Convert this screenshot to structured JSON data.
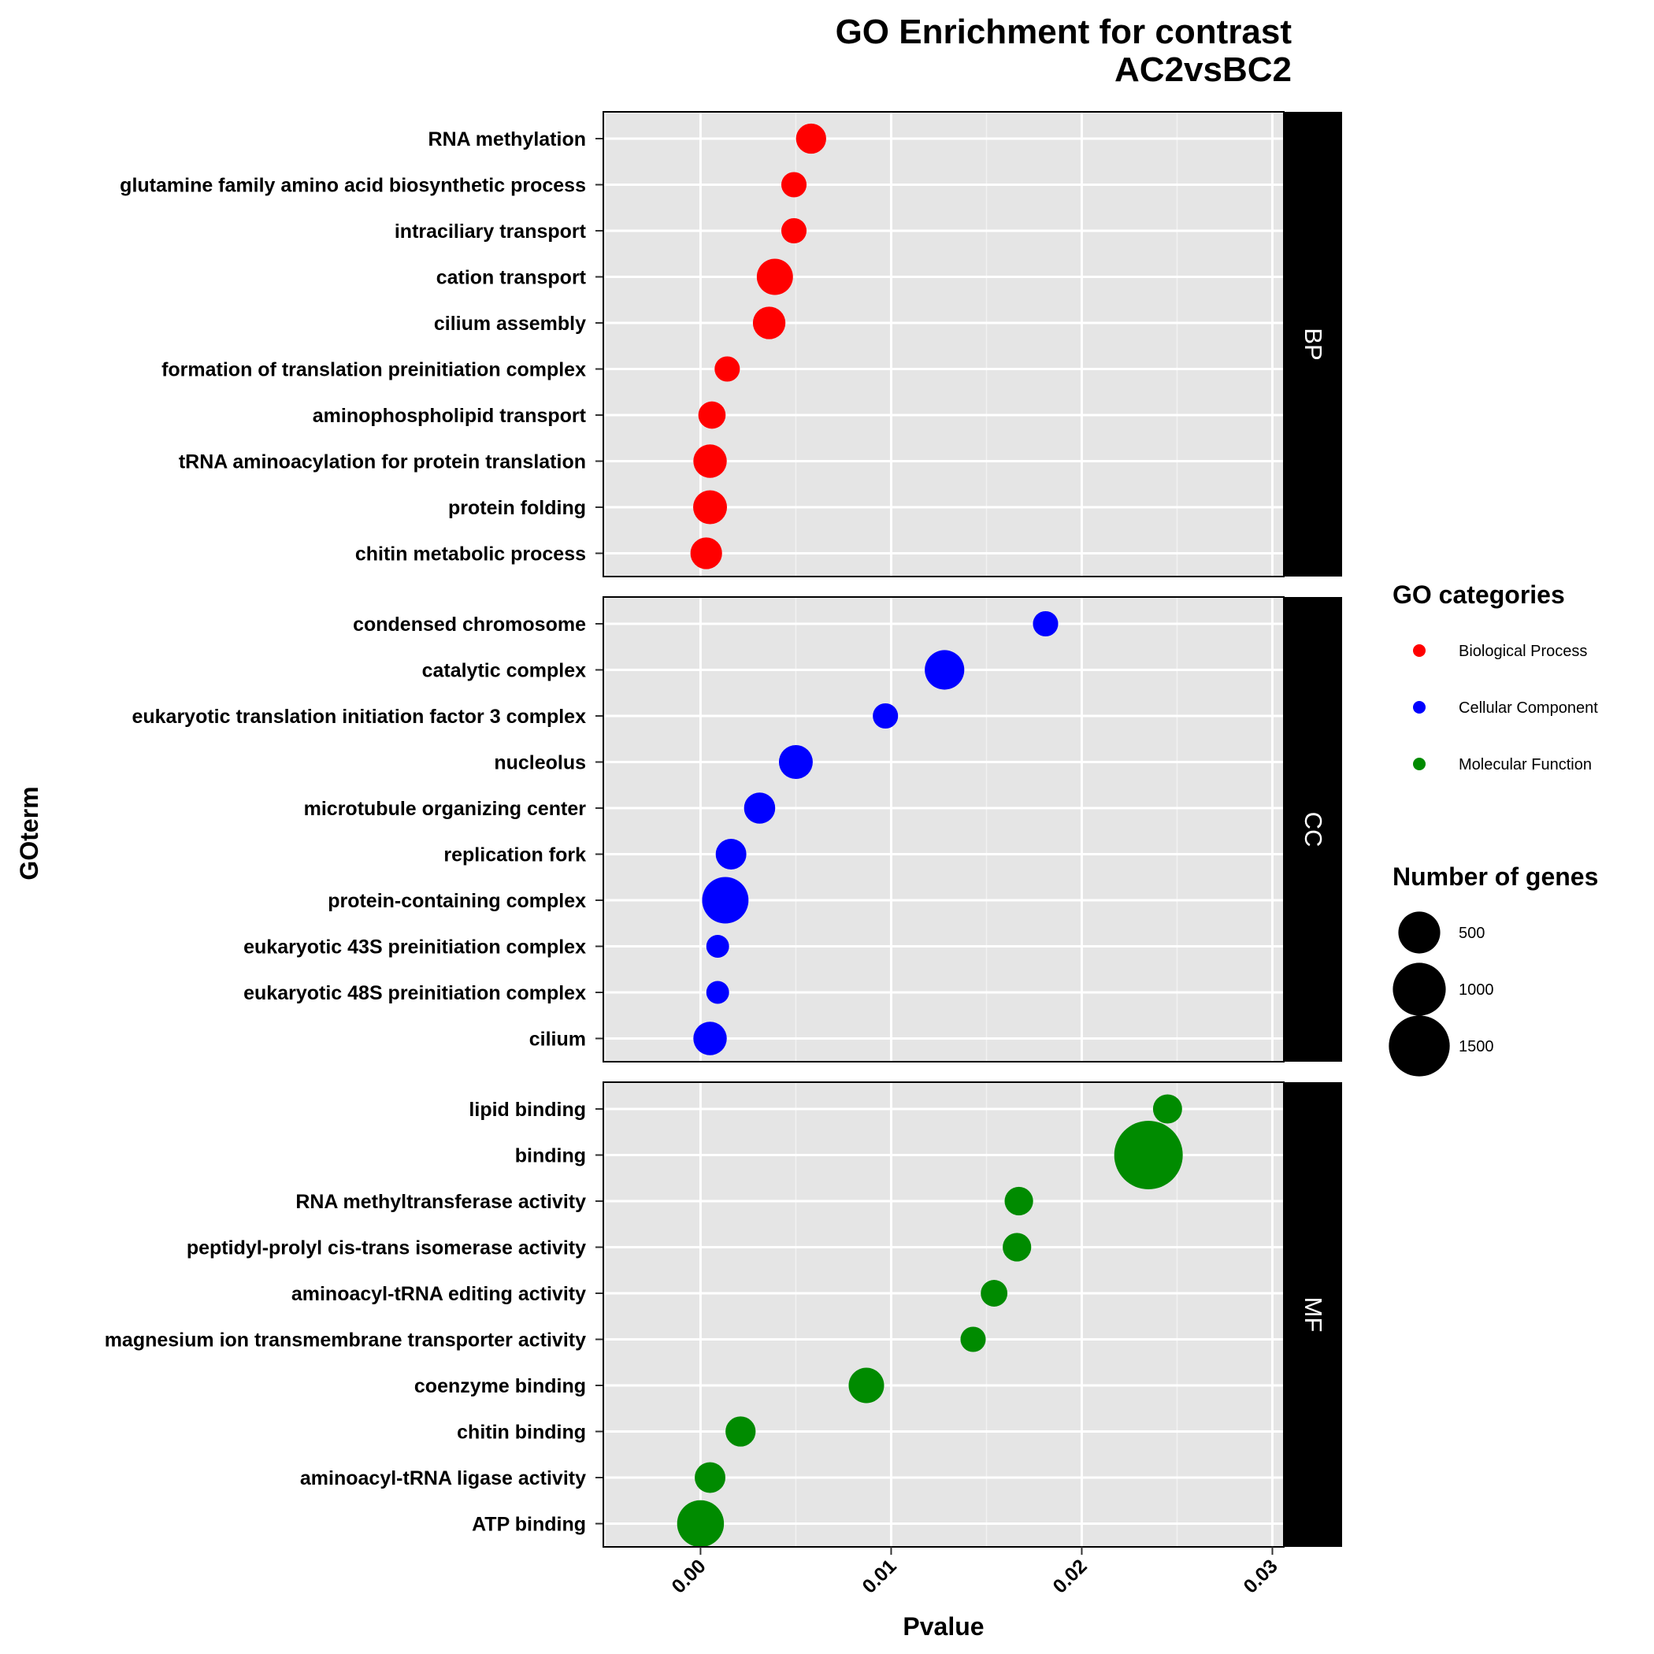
{
  "chart_data": {
    "type": "scatter",
    "title_line1": "GO Enrichment for contrast",
    "title_line2": "AC2vsBC2",
    "xlabel": "Pvalue",
    "ylabel": "GOterm",
    "xlim": [
      -0.0051,
      0.0306
    ],
    "xticks": [
      0.0,
      0.01,
      0.02,
      0.03
    ],
    "xtick_labels": [
      "0.00",
      "0.01",
      "0.02",
      "0.03"
    ],
    "grid": true,
    "legend_position": "right",
    "panels": [
      {
        "label": "BP",
        "category": "Biological Process",
        "color": "#ff0000",
        "terms": [
          "RNA methylation",
          "glutamine family amino acid biosynthetic process",
          "intraciliary transport",
          "cation transport",
          "cilium assembly",
          "formation of translation preinitiation complex",
          "aminophospholipid transport",
          "tRNA aminoacylation for protein translation",
          "protein folding",
          "chitin metabolic process"
        ],
        "pvalues": [
          0.0058,
          0.0049,
          0.0049,
          0.0039,
          0.0036,
          0.0014,
          0.0006,
          0.0005,
          0.0005,
          0.0003
        ],
        "genes": [
          180,
          100,
          100,
          320,
          230,
          100,
          130,
          250,
          260,
          210
        ]
      },
      {
        "label": "CC",
        "category": "Cellular Component",
        "color": "#0000ff",
        "terms": [
          "condensed chromosome",
          "catalytic complex",
          "eukaryotic translation initiation factor 3 complex",
          "nucleolus",
          "microtubule organizing center",
          "replication fork",
          "protein-containing complex",
          "eukaryotic 43S preinitiation complex",
          "eukaryotic 48S preinitiation complex",
          "cilium"
        ],
        "pvalues": [
          0.0181,
          0.0128,
          0.0097,
          0.005,
          0.0031,
          0.0016,
          0.0013,
          0.0009,
          0.0009,
          0.0005
        ],
        "genes": [
          100,
          420,
          100,
          260,
          200,
          190,
          680,
          70,
          70,
          250
        ]
      },
      {
        "label": "MF",
        "category": "Molecular Function",
        "color": "#008b00",
        "terms": [
          "lipid binding",
          "binding",
          "RNA methyltransferase activity",
          "peptidyl-prolyl cis-trans isomerase activity",
          "aminoacyl-tRNA editing activity",
          "magnesium ion transmembrane transporter activity",
          "coenzyme binding",
          "chitin binding",
          "aminoacyl-tRNA ligase activity",
          "ATP binding"
        ],
        "pvalues": [
          0.0245,
          0.0235,
          0.0167,
          0.0166,
          0.0154,
          0.0143,
          0.0087,
          0.0021,
          0.0005,
          0.0
        ],
        "genes": [
          160,
          2100,
          150,
          150,
          120,
          100,
          300,
          180,
          190,
          700
        ]
      }
    ],
    "legend_categories_title": "GO categories",
    "legend_categories": [
      {
        "name": "Biological Process",
        "color": "#ff0000"
      },
      {
        "name": "Cellular Component",
        "color": "#0000ff"
      },
      {
        "name": "Molecular Function",
        "color": "#008b00"
      }
    ],
    "legend_size_title": "Number of genes",
    "legend_sizes": [
      500,
      1000,
      1500
    ]
  }
}
